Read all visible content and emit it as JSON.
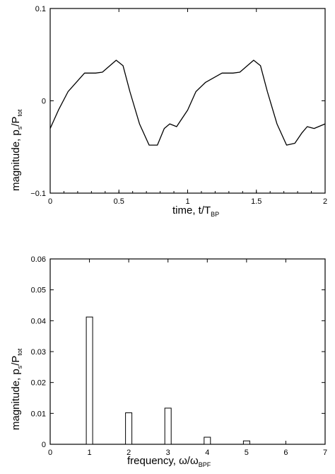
{
  "chart_data": [
    {
      "type": "line",
      "xlabel": "time, t/T",
      "xlabel_sub": "BP",
      "ylabel": "magnitude, p",
      "ylabel_sub1": "s",
      "ylabel_mid": "/P",
      "ylabel_sub2": "tot",
      "xlim": [
        0,
        2
      ],
      "ylim": [
        -0.1,
        0.1
      ],
      "xticks": [
        0,
        0.5,
        1,
        1.5,
        2
      ],
      "xtick_labels": [
        "0",
        "0.5",
        "1",
        "1.5",
        "2"
      ],
      "yticks": [
        -0.1,
        0,
        0.1
      ],
      "ytick_labels": [
        "−0.1",
        "0",
        "0.1"
      ],
      "x": [
        0,
        0.06,
        0.13,
        0.25,
        0.33,
        0.38,
        0.48,
        0.53,
        0.58,
        0.65,
        0.72,
        0.78,
        0.83,
        0.87,
        0.92,
        1.0,
        1.06,
        1.13,
        1.25,
        1.33,
        1.38,
        1.48,
        1.53,
        1.58,
        1.65,
        1.72,
        1.78,
        1.83,
        1.87,
        1.92,
        2.0
      ],
      "y": [
        -0.03,
        -0.01,
        0.01,
        0.03,
        0.03,
        0.031,
        0.044,
        0.038,
        0.01,
        -0.025,
        -0.048,
        -0.048,
        -0.03,
        -0.025,
        -0.028,
        -0.01,
        0.01,
        0.02,
        0.03,
        0.03,
        0.031,
        0.044,
        0.038,
        0.01,
        -0.025,
        -0.048,
        -0.046,
        -0.035,
        -0.028,
        -0.03,
        -0.025
      ]
    },
    {
      "type": "bar",
      "xlabel": "frequency, ω/ω",
      "xlabel_sub": "BPF",
      "ylabel": "magnitude, p",
      "ylabel_sub1": "s",
      "ylabel_mid": "/P",
      "ylabel_sub2": "tot",
      "xlim": [
        0,
        7
      ],
      "ylim": [
        0,
        0.06
      ],
      "xticks": [
        0,
        1,
        2,
        3,
        4,
        5,
        6,
        7
      ],
      "xtick_labels": [
        "0",
        "1",
        "2",
        "3",
        "4",
        "5",
        "6",
        "7"
      ],
      "yticks": [
        0,
        0.01,
        0.02,
        0.03,
        0.04,
        0.05,
        0.06
      ],
      "ytick_labels": [
        "0",
        "0.01",
        "0.02",
        "0.03",
        "0.04",
        "0.05",
        "0.06"
      ],
      "categories": [
        1,
        2,
        3,
        4,
        5
      ],
      "values": [
        0.0412,
        0.0102,
        0.0117,
        0.0023,
        0.0011
      ]
    }
  ]
}
